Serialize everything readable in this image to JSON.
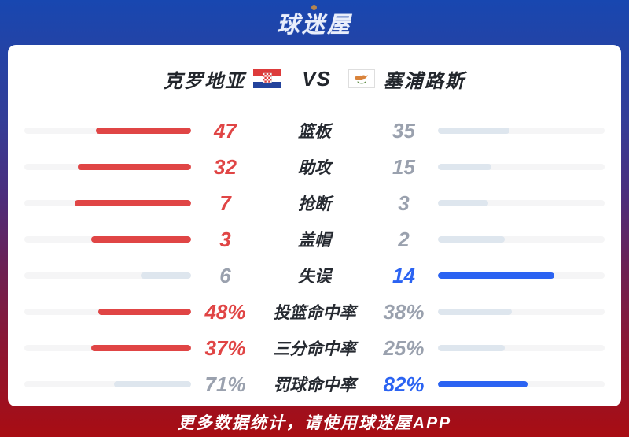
{
  "logo": {
    "text": "球迷屋"
  },
  "header": {
    "home_team": "克罗地亚",
    "vs_label": "VS",
    "away_team": "塞浦路斯",
    "home_flag": "croatia",
    "away_flag": "cyprus"
  },
  "colors": {
    "home_accent": "#e04545",
    "away_accent": "#2b63f2",
    "muted_value": "#9aa1ae",
    "muted_fill": "#dee6ee",
    "track": "#f5f5f6",
    "label_text": "#262a31",
    "logo_dot": "#b5854f"
  },
  "chart_data": {
    "type": "bar",
    "note": "head-to-head stat comparison, fill width proportional to value share",
    "categories": [
      "篮板",
      "助攻",
      "抢断",
      "盖帽",
      "失误",
      "投篮命中率",
      "三分命中率",
      "罚球命中率"
    ],
    "series": [
      {
        "name": "克罗地亚",
        "values": [
          47,
          32,
          7,
          3,
          6,
          "48%",
          "37%",
          "71%"
        ]
      },
      {
        "name": "塞浦路斯",
        "values": [
          35,
          15,
          3,
          2,
          14,
          "38%",
          "25%",
          "82%"
        ]
      }
    ]
  },
  "stats": [
    {
      "label": "篮板",
      "home": "47",
      "away": "35",
      "home_pct": 57.3,
      "away_pct": 42.7,
      "winner": "home"
    },
    {
      "label": "助攻",
      "home": "32",
      "away": "15",
      "home_pct": 68.1,
      "away_pct": 31.9,
      "winner": "home"
    },
    {
      "label": "抢断",
      "home": "7",
      "away": "3",
      "home_pct": 70.0,
      "away_pct": 30.0,
      "winner": "home"
    },
    {
      "label": "盖帽",
      "home": "3",
      "away": "2",
      "home_pct": 60.0,
      "away_pct": 40.0,
      "winner": "home"
    },
    {
      "label": "失误",
      "home": "6",
      "away": "14",
      "home_pct": 30.0,
      "away_pct": 70.0,
      "winner": "away"
    },
    {
      "label": "投篮命中率",
      "home": "48%",
      "away": "38%",
      "home_pct": 55.8,
      "away_pct": 44.2,
      "winner": "home"
    },
    {
      "label": "三分命中率",
      "home": "37%",
      "away": "25%",
      "home_pct": 59.7,
      "away_pct": 40.3,
      "winner": "home"
    },
    {
      "label": "罚球命中率",
      "home": "71%",
      "away": "82%",
      "home_pct": 46.4,
      "away_pct": 53.6,
      "winner": "away"
    }
  ],
  "footer": {
    "text": "更多数据统计，请使用球迷屋APP"
  }
}
